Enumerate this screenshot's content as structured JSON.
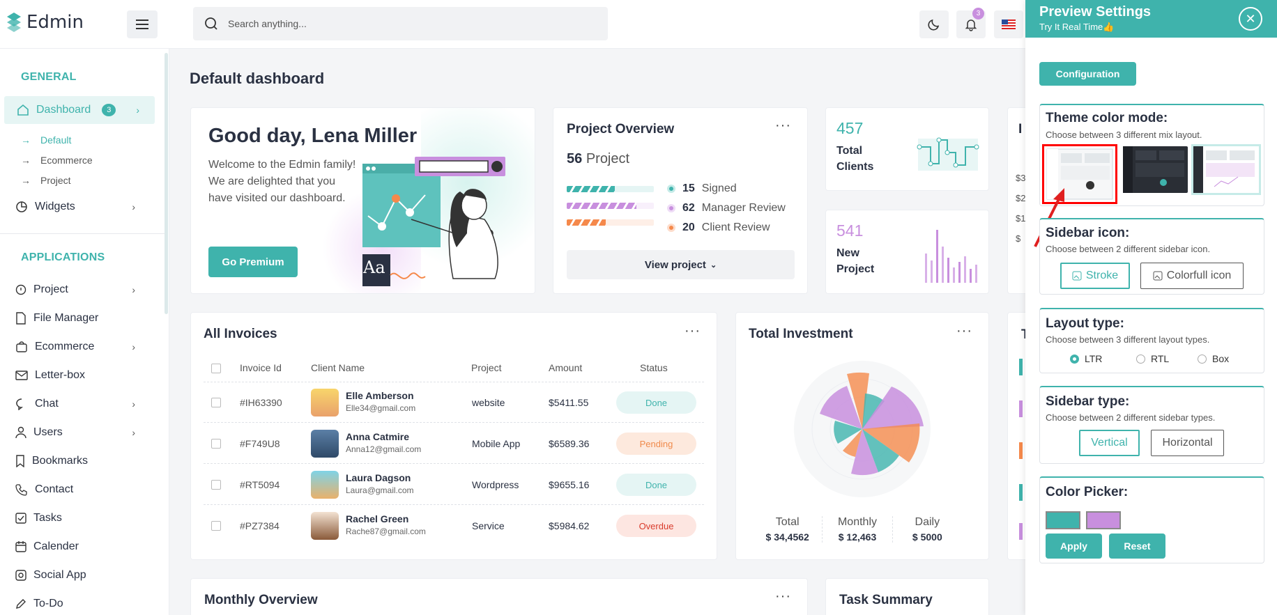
{
  "header": {
    "logo": "Edmin",
    "search_placeholder": "Search anything...",
    "notif_count": "3",
    "icons": [
      "menu-icon",
      "search-icon",
      "moon-icon",
      "bell-icon",
      "us-flag-icon"
    ]
  },
  "sidebar": {
    "section_general": "GENERAL",
    "dashboard": {
      "label": "Dashboard",
      "count": "3"
    },
    "sub": [
      "Default",
      "Ecommerce",
      "Project"
    ],
    "widgets": "Widgets",
    "section_apps": "APPLICATIONS",
    "items": [
      "Project",
      "File Manager",
      "Ecommerce",
      "Letter-box",
      "Chat",
      "Users",
      "Bookmarks",
      "Contact",
      "Tasks",
      "Calender",
      "Social App",
      "To-Do"
    ]
  },
  "main": {
    "page_title": "Default dashboard",
    "welcome": {
      "heading": "Good day, Lena Miller",
      "line1": "Welcome to the Edmin family!",
      "line2": "We are delighted that you",
      "line3": "have visited our dashboard.",
      "button": "Go Premium",
      "illustration_text": "Aa"
    },
    "project_overview": {
      "title": "Project Overview",
      "count": "56",
      "count_label": "Project",
      "stats": [
        {
          "num": "15",
          "label": "Signed",
          "color": "#3fb3ac"
        },
        {
          "num": "62",
          "label": "Manager Review",
          "color": "#c88fde"
        },
        {
          "num": "20",
          "label": "Client Review",
          "color": "#f5894b"
        }
      ],
      "bar_progress": [
        0.55,
        0.8,
        0.45
      ],
      "button": "View project"
    },
    "total_clients": {
      "num": "457",
      "label1": "Total",
      "label2": "Clients"
    },
    "new_project": {
      "num": "541",
      "label1": "New",
      "label2": "Project"
    },
    "partial_card": {
      "title": "I",
      "values": [
        "$3",
        "$2",
        "$1",
        "$"
      ]
    },
    "invoices": {
      "title": "All Invoices",
      "columns": [
        "Invoice Id",
        "Client Name",
        "Project",
        "Amount",
        "Status"
      ],
      "rows": [
        {
          "id": "#IH63390",
          "name": "Elle Amberson",
          "email": "Elle34@gmail.com",
          "project": "website",
          "amount": "$5411.55",
          "status": "Done"
        },
        {
          "id": "#F749U8",
          "name": "Anna Catmire",
          "email": "Anna12@gmail.com",
          "project": "Mobile App",
          "amount": "$6589.36",
          "status": "Pending"
        },
        {
          "id": "#RT5094",
          "name": "Laura Dagson",
          "email": "Laura@gmail.com",
          "project": "Wordpress",
          "amount": "$9655.16",
          "status": "Done"
        },
        {
          "id": "#PZ7384",
          "name": "Rachel Green",
          "email": "Rache87@gmail.com",
          "project": "Service",
          "amount": "$5984.62",
          "status": "Overdue"
        }
      ]
    },
    "investment": {
      "title": "Total Investment",
      "stats": [
        {
          "label": "Total",
          "value": "$ 34,4562"
        },
        {
          "label": "Monthly",
          "value": "$ 12,463"
        },
        {
          "label": "Daily",
          "value": "$ 5000"
        }
      ],
      "partial_title": "T"
    },
    "monthly_overview": {
      "title": "Monthly Overview"
    },
    "task_summary": {
      "title": "Task Summary"
    }
  },
  "settings": {
    "title": "Preview Settings",
    "subtitle": "Try It Real Time",
    "config_button": "Configuration",
    "theme": {
      "title": "Theme color mode:",
      "desc": "Choose between 3 different mix layout."
    },
    "sidebar_icon": {
      "title": "Sidebar icon:",
      "desc": "Choose between 2 different sidebar icon.",
      "opt1": "Stroke",
      "opt2": "Colorfull icon"
    },
    "layout": {
      "title": "Layout type:",
      "desc": "Choose between 3 different layout types.",
      "opt1": "LTR",
      "opt2": "RTL",
      "opt3": "Box"
    },
    "sidebar_type": {
      "title": "Sidebar type:",
      "desc": "Choose between 2 different sidebar types.",
      "opt1": "Vertical",
      "opt2": "Horizontal"
    },
    "color_picker": {
      "title": "Color Picker:",
      "apply": "Apply",
      "reset": "Reset",
      "colors": [
        "#3fb3ac",
        "#c88fde"
      ]
    }
  },
  "colors": {
    "accent": "#3fb3ac",
    "purple": "#c88fde",
    "orange": "#f5894b",
    "highlight": "#ff0000"
  }
}
